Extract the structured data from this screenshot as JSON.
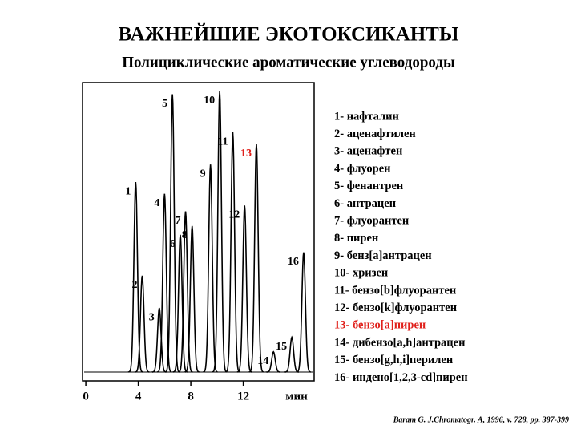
{
  "chart_data": {
    "type": "chromatogram",
    "title": "ВАЖНЕЙШИЕ  ЭКОТОКСИКАНТЫ",
    "subtitle": "Полициклические ароматические углеводороды",
    "categories": [
      "1",
      "2",
      "3",
      "4",
      "5",
      "6",
      "7",
      "8",
      "9",
      "10",
      "11",
      "12",
      "13",
      "14",
      "15",
      "16"
    ],
    "x": [
      3.8,
      4.3,
      5.6,
      6.0,
      6.6,
      7.2,
      7.6,
      8.1,
      9.5,
      10.2,
      11.2,
      12.1,
      13.0,
      14.3,
      15.7,
      16.6
    ],
    "values": [
      66,
      34,
      23,
      62,
      96,
      48,
      56,
      51,
      72,
      97,
      83,
      58,
      79,
      8,
      13,
      42
    ],
    "label_colors": [
      "#000000",
      "#000000",
      "#000000",
      "#000000",
      "#000000",
      "#000000",
      "#000000",
      "#000000",
      "#000000",
      "#000000",
      "#000000",
      "#000000",
      "#e0201b",
      "#000000",
      "#000000",
      "#000000"
    ],
    "color": "#000000",
    "xlim": [
      -0.25,
      17.4
    ],
    "xticks": [
      0,
      4,
      8,
      12
    ],
    "xlabel": "мин",
    "ylim": [
      0,
      100
    ],
    "legend": [
      "1- нафталин",
      "2- аценафтилен",
      "3- аценафтен",
      "4- флуорен",
      "5- фенантрен",
      "6- антрацен",
      "7- флуорантен",
      "8- пирен",
      "9- бенз[a]антрацен",
      "10- хризен",
      "11- бензо[b]флуорантен",
      "12- бензо[k]флуорантен",
      "13- бензо[a]пирен",
      "14- дибензо[a,h]антрацен",
      "15- бензо[g,h,i]перилен",
      "16- индено[1,2,3-cd]пирен"
    ],
    "source": "Baram G. J.Chromatogr. A, 1996, v. 728, pp. 387-399"
  }
}
